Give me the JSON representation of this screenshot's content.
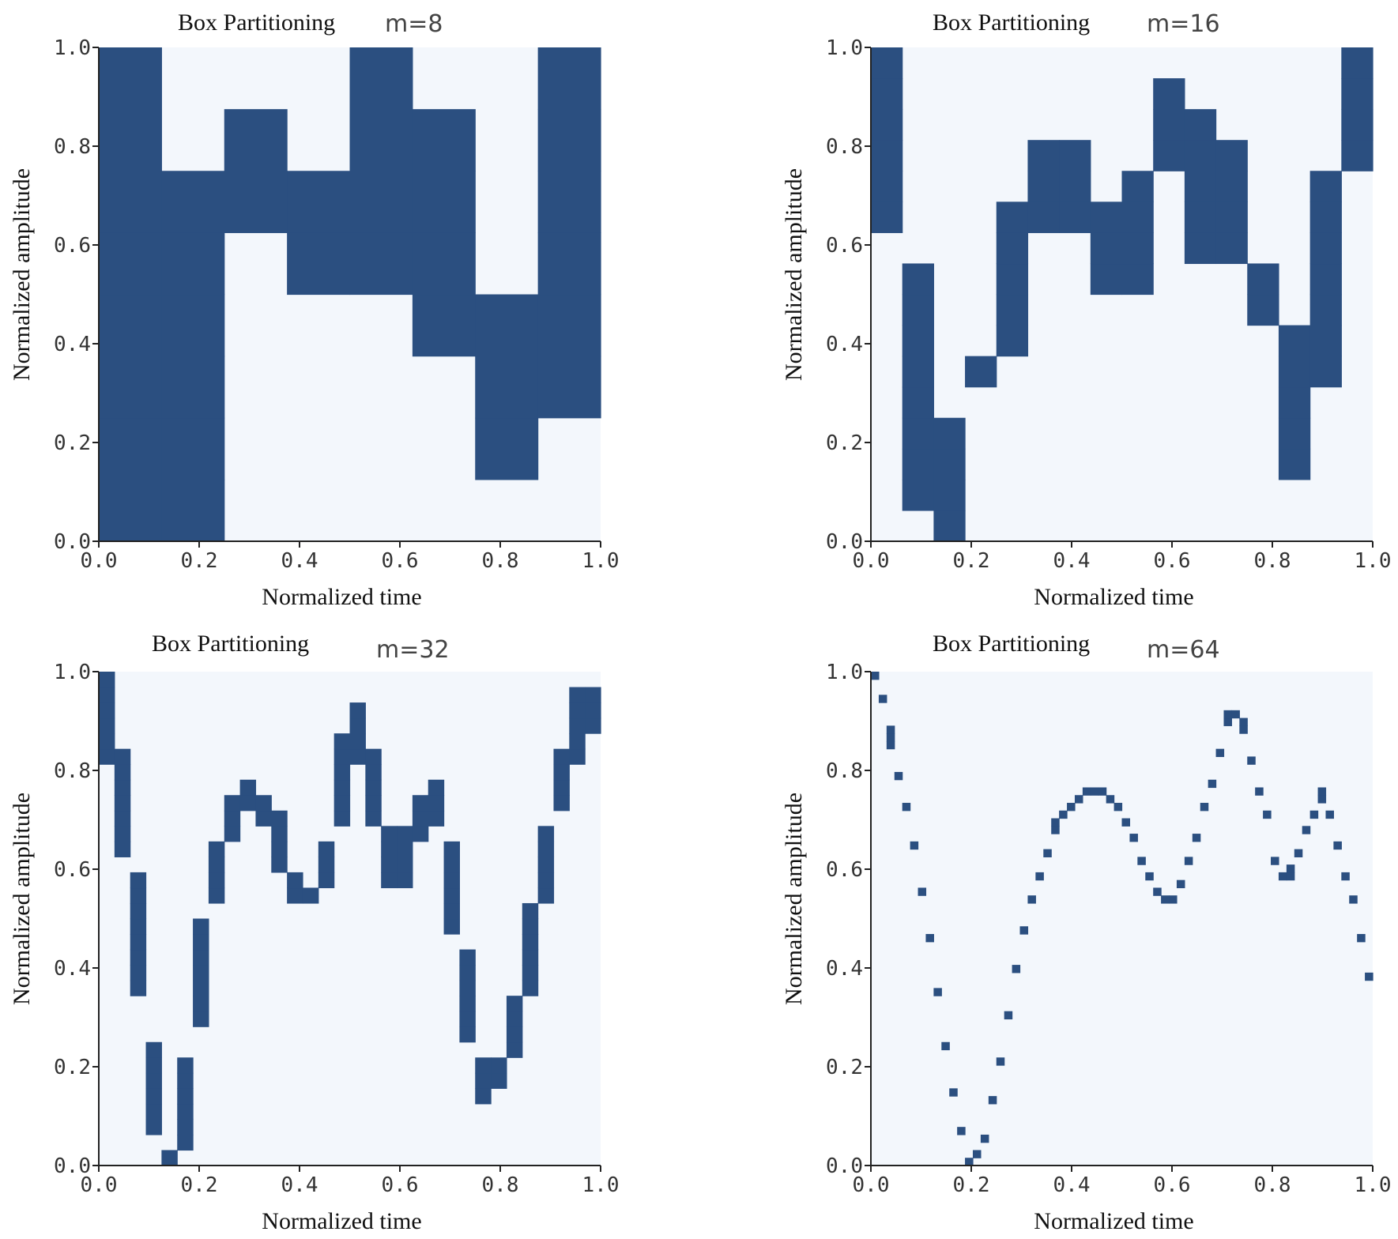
{
  "chart_data": [
    {
      "type": "heatmap",
      "title": "Box Partitioning",
      "m_label": "m=8",
      "m": 8,
      "xlabel": "Normalized time",
      "ylabel": "Normalized amplitude",
      "xlim": [
        0,
        1
      ],
      "ylim": [
        0,
        1
      ],
      "x_ticks": [
        "0.0",
        "0.2",
        "0.4",
        "0.6",
        "0.8",
        "1.0"
      ],
      "y_ticks": [
        "0.0",
        "0.2",
        "0.4",
        "0.6",
        "0.8",
        "1.0"
      ],
      "occupied_rows_per_column": [
        [
          0,
          7
        ],
        [
          0,
          5
        ],
        [
          5,
          6
        ],
        [
          4,
          5
        ],
        [
          4,
          7
        ],
        [
          3,
          6
        ],
        [
          1,
          3
        ],
        [
          2,
          7
        ]
      ]
    },
    {
      "type": "heatmap",
      "title": "Box Partitioning",
      "m_label": "m=16",
      "m": 16,
      "xlabel": "Normalized time",
      "ylabel": "Normalized amplitude",
      "xlim": [
        0,
        1
      ],
      "ylim": [
        0,
        1
      ],
      "x_ticks": [
        "0.0",
        "0.2",
        "0.4",
        "0.6",
        "0.8",
        "1.0"
      ],
      "y_ticks": [
        "0.0",
        "0.2",
        "0.4",
        "0.6",
        "0.8",
        "1.0"
      ],
      "occupied_rows_per_column": [
        [
          10,
          15
        ],
        [
          1,
          8
        ],
        [
          0,
          3
        ],
        [
          5,
          5
        ],
        [
          6,
          10
        ],
        [
          10,
          12
        ],
        [
          10,
          12
        ],
        [
          8,
          10
        ],
        [
          8,
          11
        ],
        [
          12,
          14
        ],
        [
          9,
          13
        ],
        [
          9,
          12
        ],
        [
          7,
          8
        ],
        [
          2,
          6
        ],
        [
          5,
          11
        ],
        [
          12,
          15
        ]
      ]
    },
    {
      "type": "heatmap",
      "title": "Box Partitioning",
      "m_label": "m=32",
      "m": 32,
      "xlabel": "Normalized time",
      "ylabel": "Normalized amplitude",
      "xlim": [
        0,
        1
      ],
      "ylim": [
        0,
        1
      ],
      "x_ticks": [
        "0.0",
        "0.2",
        "0.4",
        "0.6",
        "0.8",
        "1.0"
      ],
      "y_ticks": [
        "0.0",
        "0.2",
        "0.4",
        "0.6",
        "0.8",
        "1.0"
      ],
      "occupied_rows": [
        [
          26,
          31
        ],
        [
          20,
          26
        ],
        [
          11,
          18
        ],
        [
          2,
          7
        ],
        [
          0,
          0
        ],
        [
          1,
          6
        ],
        [
          9,
          15
        ],
        [
          17,
          20
        ],
        [
          21,
          23
        ],
        [
          23,
          24
        ],
        [
          22,
          23
        ],
        [
          19,
          22
        ],
        [
          17,
          18
        ],
        [
          17,
          17
        ],
        [
          18,
          20
        ],
        [
          22,
          27
        ],
        [
          26,
          29
        ],
        [
          22,
          26
        ],
        [
          18,
          21
        ],
        [
          18,
          21
        ],
        [
          21,
          23
        ],
        [
          22,
          24
        ],
        [
          15,
          20
        ],
        [
          8,
          13
        ],
        [
          4,
          6
        ],
        [
          5,
          6
        ],
        [
          7,
          10
        ],
        [
          11,
          16
        ],
        [
          17,
          21
        ],
        [
          23,
          26
        ],
        [
          26,
          30
        ],
        [
          28,
          30
        ]
      ]
    },
    {
      "type": "scatter",
      "title": "Box Partitioning",
      "m_label": "m=64",
      "m": 64,
      "xlabel": "Normalized time",
      "ylabel": "Normalized amplitude",
      "xlim": [
        0,
        1
      ],
      "ylim": [
        0,
        1
      ],
      "x_ticks": [
        "0.0",
        "0.2",
        "0.4",
        "0.6",
        "0.8",
        "1.0"
      ],
      "y_ticks": [
        "0.0",
        "0.2",
        "0.4",
        "0.6",
        "0.8",
        "1.0"
      ],
      "occupied_rows": [
        [
          63,
          63
        ],
        [
          60,
          60
        ],
        [
          54,
          56
        ],
        [
          50,
          50
        ],
        [
          46,
          46
        ],
        [
          41,
          41
        ],
        [
          35,
          35
        ],
        [
          29,
          29
        ],
        [
          22,
          22
        ],
        [
          15,
          15
        ],
        [
          9,
          9
        ],
        [
          4,
          4
        ],
        [
          0,
          0
        ],
        [
          1,
          1
        ],
        [
          3,
          3
        ],
        [
          8,
          8
        ],
        [
          13,
          13
        ],
        [
          19,
          19
        ],
        [
          25,
          25
        ],
        [
          30,
          30
        ],
        [
          34,
          34
        ],
        [
          37,
          37
        ],
        [
          40,
          40
        ],
        [
          43,
          44
        ],
        [
          45,
          45
        ],
        [
          46,
          46
        ],
        [
          47,
          47
        ],
        [
          48,
          48
        ],
        [
          48,
          48
        ],
        [
          48,
          48
        ],
        [
          47,
          47
        ],
        [
          46,
          46
        ],
        [
          44,
          44
        ],
        [
          42,
          42
        ],
        [
          39,
          39
        ],
        [
          37,
          37
        ],
        [
          35,
          35
        ],
        [
          34,
          34
        ],
        [
          34,
          34
        ],
        [
          36,
          36
        ],
        [
          39,
          39
        ],
        [
          42,
          42
        ],
        [
          46,
          46
        ],
        [
          49,
          49
        ],
        [
          53,
          53
        ],
        [
          57,
          58
        ],
        [
          58,
          58
        ],
        [
          56,
          57
        ],
        [
          52,
          52
        ],
        [
          48,
          48
        ],
        [
          45,
          45
        ],
        [
          39,
          39
        ],
        [
          37,
          37
        ],
        [
          37,
          38
        ],
        [
          40,
          40
        ],
        [
          43,
          43
        ],
        [
          45,
          45
        ],
        [
          47,
          48
        ],
        [
          45,
          45
        ],
        [
          41,
          41
        ],
        [
          37,
          37
        ],
        [
          34,
          34
        ],
        [
          29,
          29
        ],
        [
          24,
          24
        ]
      ]
    }
  ]
}
